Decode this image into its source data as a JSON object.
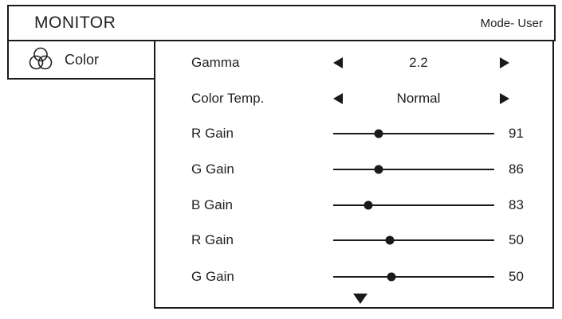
{
  "header": {
    "title": "MONITOR",
    "mode_label": "Mode- User"
  },
  "sidebar": {
    "items": [
      {
        "icon": "color-circles-icon",
        "label": "Color"
      }
    ]
  },
  "panel": {
    "selector_rows": [
      {
        "label": "Gamma",
        "value": "2.2",
        "left_icon": "decrease-arrow-icon",
        "right_icon": "increase-arrow-icon"
      },
      {
        "label": "Color Temp.",
        "value": "Normal",
        "left_icon": "decrease-arrow-icon",
        "right_icon": "increase-arrow-icon"
      }
    ],
    "slider_rows": [
      {
        "label": "R Gain",
        "value": "91",
        "position_pct": 28
      },
      {
        "label": "G Gain",
        "value": "86",
        "position_pct": 28
      },
      {
        "label": "B Gain",
        "value": "83",
        "position_pct": 22
      },
      {
        "label": "R Gain",
        "value": "50",
        "position_pct": 35
      },
      {
        "label": "G Gain",
        "value": "50",
        "position_pct": 36
      }
    ],
    "scroll_indicator_icon": "scroll-down-icon"
  },
  "colors": {
    "foreground": "#231f20",
    "border": "#1a1a1a",
    "background": "#ffffff"
  }
}
